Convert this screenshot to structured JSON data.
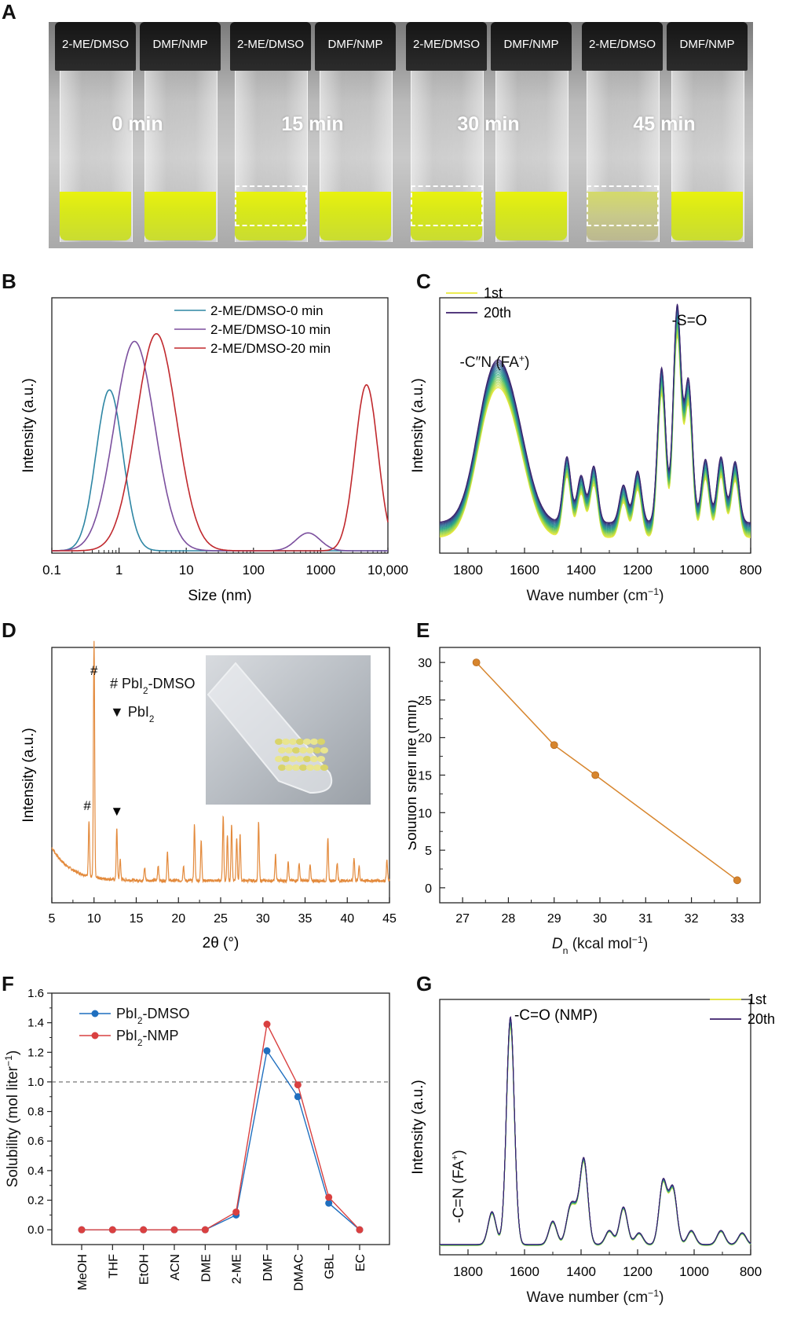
{
  "panels": {
    "A": "A",
    "B": "B",
    "C": "C",
    "D": "D",
    "E": "E",
    "F": "F",
    "G": "G"
  },
  "panelA": {
    "vials": [
      {
        "left_label": "2-ME/DMSO",
        "right_label": "DMF/NMP",
        "time": "0 min"
      },
      {
        "left_label": "2-ME/DMSO",
        "right_label": "DMF/NMP",
        "time": "15 min"
      },
      {
        "left_label": "2-ME/DMSO",
        "right_label": "DMF/NMP",
        "time": "30 min"
      },
      {
        "left_label": "2-ME/DMSO",
        "right_label": "DMF/NMP",
        "time": "45 min"
      }
    ]
  },
  "chart_data": [
    {
      "id": "B",
      "type": "line",
      "xlabel": "Size (nm)",
      "ylabel": "Intensity (a.u.)",
      "xscale": "log",
      "xlim": [
        0.1,
        10000
      ],
      "xticks": [
        "0.1",
        "1",
        "10",
        "100",
        "1000",
        "10,000"
      ],
      "legend_position": "top-right",
      "series": [
        {
          "name": "2-ME/DMSO-0 min",
          "color": "#2e86a4",
          "peaks": [
            {
              "center": 0.72,
              "height": 0.63,
              "width": 0.2
            }
          ]
        },
        {
          "name": "2-ME/DMSO-10 min",
          "color": "#7b4f9e",
          "peaks": [
            {
              "center": 1.7,
              "height": 0.82,
              "width": 0.3
            },
            {
              "center": 650,
              "height": 0.07,
              "width": 0.18
            }
          ]
        },
        {
          "name": "2-ME/DMSO-20 min",
          "color": "#c0282d",
          "peaks": [
            {
              "center": 3.6,
              "height": 0.85,
              "width": 0.3
            },
            {
              "center": 4800,
              "height": 0.65,
              "width": 0.17
            }
          ]
        }
      ]
    },
    {
      "id": "C",
      "type": "line",
      "xlabel": "Wave number (cm⁻¹)",
      "ylabel": "Intensity (a.u.)",
      "xlim": [
        1900,
        800
      ],
      "xticks": [
        "1800",
        "1600",
        "1400",
        "1200",
        "1000",
        "800"
      ],
      "legend": [
        {
          "name": "1st",
          "color": "#eaea3a"
        },
        {
          "name": "20th",
          "color": "#3b1f6b"
        }
      ],
      "annotations": [
        "-C''N (FA⁺)",
        "-S=O"
      ],
      "peaks": [
        [
          1720,
          0.52
        ],
        [
          1640,
          0.32
        ],
        [
          1450,
          0.28
        ],
        [
          1400,
          0.2
        ],
        [
          1355,
          0.24
        ],
        [
          1250,
          0.16
        ],
        [
          1200,
          0.22
        ],
        [
          1115,
          0.66
        ],
        [
          1060,
          0.92
        ],
        [
          1020,
          0.6
        ],
        [
          960,
          0.27
        ],
        [
          905,
          0.28
        ],
        [
          855,
          0.26
        ]
      ],
      "n_curves": 20
    },
    {
      "id": "D",
      "type": "line",
      "xlabel": "2θ (°)",
      "ylabel": "Intensity (a.u.)",
      "xlim": [
        5,
        45
      ],
      "xticks": [
        "5",
        "10",
        "15",
        "20",
        "25",
        "30",
        "35",
        "40",
        "45"
      ],
      "legend": [
        {
          "marker": "#",
          "label": "PbI₂-DMSO"
        },
        {
          "marker": "▼",
          "label": "PbI₂"
        }
      ],
      "peak_markers": [
        {
          "x": 10,
          "symbol": "#"
        },
        {
          "x": 9.4,
          "symbol": "#"
        },
        {
          "x": 12.7,
          "symbol": "▼"
        }
      ],
      "peaks": [
        [
          9.4,
          0.22
        ],
        [
          10.0,
          0.92
        ],
        [
          12.7,
          0.2
        ],
        [
          13.1,
          0.08
        ],
        [
          16.0,
          0.05
        ],
        [
          17.6,
          0.06
        ],
        [
          18.7,
          0.11
        ],
        [
          20.6,
          0.06
        ],
        [
          21.9,
          0.22
        ],
        [
          22.7,
          0.16
        ],
        [
          25.3,
          0.26
        ],
        [
          25.8,
          0.18
        ],
        [
          26.3,
          0.22
        ],
        [
          26.9,
          0.17
        ],
        [
          27.3,
          0.18
        ],
        [
          29.5,
          0.23
        ],
        [
          31.5,
          0.1
        ],
        [
          33.0,
          0.08
        ],
        [
          34.3,
          0.07
        ],
        [
          35.6,
          0.06
        ],
        [
          37.7,
          0.17
        ],
        [
          38.8,
          0.07
        ],
        [
          40.8,
          0.09
        ],
        [
          41.4,
          0.06
        ],
        [
          44.7,
          0.08
        ]
      ],
      "inset": "photo of yellow crystals in tube"
    },
    {
      "id": "E",
      "type": "line",
      "xlabel": "Dₙ (kcal mol⁻¹)",
      "ylabel": "Solution shelf life (min)",
      "xlim": [
        26.5,
        33.5
      ],
      "ylim": [
        -2,
        32
      ],
      "xticks": [
        "27",
        "28",
        "29",
        "30",
        "31",
        "32",
        "33"
      ],
      "yticks": [
        "0",
        "5",
        "10",
        "15",
        "20",
        "25",
        "30"
      ],
      "x": [
        27.3,
        29.0,
        29.9,
        33.0
      ],
      "y": [
        30,
        19,
        15,
        1
      ],
      "color": "#d7852d"
    },
    {
      "id": "F",
      "type": "line",
      "xlabel": "",
      "ylabel": "Solubility (mol liter⁻¹)",
      "ylim": [
        -0.1,
        1.6
      ],
      "yticks": [
        "0.0",
        "0.2",
        "0.4",
        "0.6",
        "0.8",
        "1.0",
        "1.2",
        "1.4",
        "1.6"
      ],
      "categories": [
        "MeOH",
        "THF",
        "EtOH",
        "ACN",
        "DME",
        "2-ME",
        "DMF",
        "DMAC",
        "GBL",
        "EC"
      ],
      "reference_line": 1.0,
      "legend_position": "top-left",
      "series": [
        {
          "name": "PbI₂-DMSO",
          "color": "#1f6fbf",
          "values": [
            0,
            0,
            0,
            0,
            0,
            0.1,
            1.21,
            0.9,
            0.18,
            0
          ]
        },
        {
          "name": "PbI₂-NMP",
          "color": "#d94040",
          "values": [
            0,
            0,
            0,
            0,
            0,
            0.12,
            1.39,
            0.98,
            0.22,
            0
          ]
        }
      ]
    },
    {
      "id": "G",
      "type": "line",
      "xlabel": "Wave number (cm⁻¹)",
      "ylabel": "Intensity (a.u.)",
      "xlim": [
        1900,
        800
      ],
      "xticks": [
        "1800",
        "1600",
        "1400",
        "1200",
        "1000",
        "800"
      ],
      "legend": [
        {
          "name": "1st",
          "color": "#eaea3a"
        },
        {
          "name": "20th",
          "color": "#3b1f6b"
        }
      ],
      "annotations": [
        "-C=O (NMP)",
        "-C=N (FA⁺)"
      ],
      "peaks": [
        [
          1715,
          0.14
        ],
        [
          1650,
          0.97
        ],
        [
          1500,
          0.1
        ],
        [
          1440,
          0.13
        ],
        [
          1420,
          0.1
        ],
        [
          1390,
          0.36
        ],
        [
          1300,
          0.06
        ],
        [
          1250,
          0.16
        ],
        [
          1195,
          0.05
        ],
        [
          1110,
          0.27
        ],
        [
          1075,
          0.24
        ],
        [
          1010,
          0.06
        ],
        [
          905,
          0.06
        ],
        [
          830,
          0.05
        ]
      ],
      "n_curves": 20
    }
  ]
}
